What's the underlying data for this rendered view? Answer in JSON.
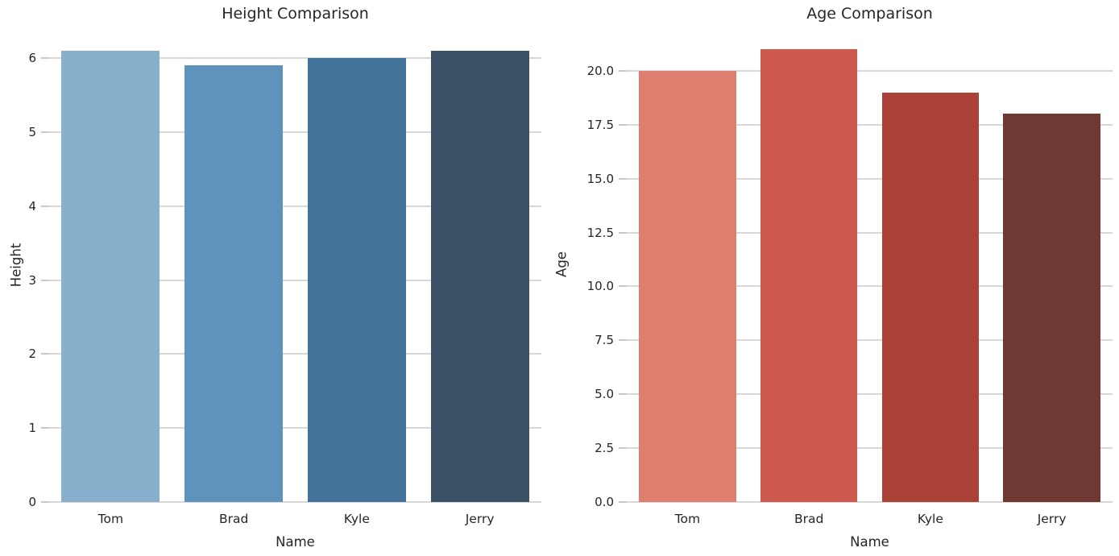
{
  "figure": {
    "background": "#ffffff",
    "grid_color": "#d8d8d8",
    "tick_color": "#c9c9c9",
    "text_color": "#262626"
  },
  "chart_data": [
    {
      "type": "bar",
      "title": "Height Comparison",
      "xlabel": "Name",
      "ylabel": "Height",
      "categories": [
        "Tom",
        "Brad",
        "Kyle",
        "Jerry"
      ],
      "values": [
        6.1,
        5.9,
        6.0,
        6.1
      ],
      "ylim": [
        0,
        6.405
      ],
      "ytick_values": [
        0,
        1,
        2,
        3,
        4,
        5,
        6
      ],
      "ytick_labels": [
        "0",
        "1",
        "2",
        "3",
        "4",
        "5",
        "6"
      ],
      "bar_colors": [
        "#88afcc",
        "#5e93bc",
        "#44739a",
        "#3b5166"
      ],
      "grid": "horizontal",
      "legend": "none"
    },
    {
      "type": "bar",
      "title": "Age Comparison",
      "xlabel": "Name",
      "ylabel": "Age",
      "categories": [
        "Tom",
        "Brad",
        "Kyle",
        "Jerry"
      ],
      "values": [
        20,
        21,
        19,
        18
      ],
      "ylim": [
        0,
        22.05
      ],
      "ytick_values": [
        0,
        2.5,
        5,
        7.5,
        10,
        12.5,
        15,
        17.5,
        20
      ],
      "ytick_labels": [
        "0.0",
        "2.5",
        "5.0",
        "7.5",
        "10.0",
        "12.5",
        "15.0",
        "17.5",
        "20.0"
      ],
      "bar_colors": [
        "#de7e6f",
        "#cd584d",
        "#ab4238",
        "#6f3833"
      ],
      "grid": "horizontal",
      "legend": "none"
    }
  ]
}
